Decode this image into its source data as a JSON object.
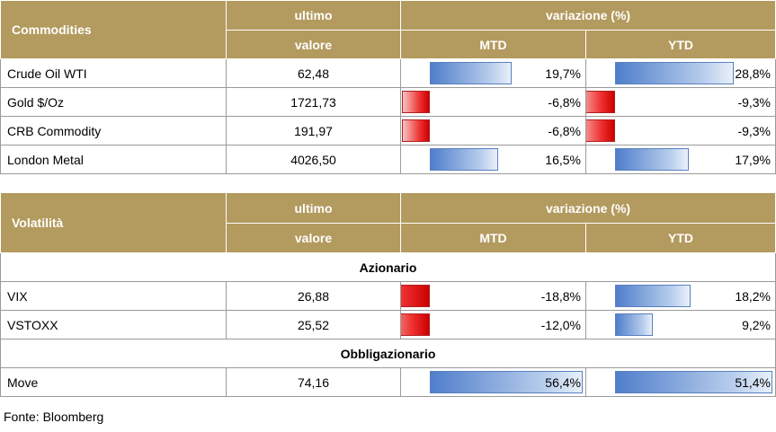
{
  "tables": [
    {
      "name": "Commodities",
      "header": {
        "col1_line1": "ultimo",
        "col1_line2": "valore",
        "variation": "variazione (%)",
        "mtd": "MTD",
        "ytd": "YTD"
      },
      "bar_center_mtd": 0.13,
      "bar_center_ytd": 0.13,
      "rows": [
        {
          "label": "Crude Oil WTI",
          "value": "62,48",
          "mtd": "19,7%",
          "mtd_num": 19.7,
          "ytd": "28,8%",
          "ytd_num": 28.8
        },
        {
          "label": "Gold $/Oz",
          "value": "1721,73",
          "mtd": "-6,8%",
          "mtd_num": -6.8,
          "ytd": "-9,3%",
          "ytd_num": -9.3
        },
        {
          "label": "CRB Commodity",
          "value": "191,97",
          "mtd": "-6,8%",
          "mtd_num": -6.8,
          "ytd": "-9,3%",
          "ytd_num": -9.3
        },
        {
          "label": "London Metal",
          "value": "4026,50",
          "mtd": "16,5%",
          "mtd_num": 16.5,
          "ytd": "17,9%",
          "ytd_num": 17.9
        }
      ]
    },
    {
      "name": "Volatilità",
      "header": {
        "col1_line1": "ultimo",
        "col1_line2": "valore",
        "variation": "variazione (%)",
        "mtd": "MTD",
        "ytd": "YTD"
      },
      "sections": [
        {
          "title": "Azionario",
          "rows": [
            {
              "label": "VIX",
              "value": "26,88",
              "mtd": "-18,8%",
              "mtd_num": -18.8,
              "ytd": "18,2%",
              "ytd_num": 18.2
            },
            {
              "label": "VSTOXX",
              "value": "25,52",
              "mtd": "-12,0%",
              "mtd_num": -12.0,
              "ytd": "9,2%",
              "ytd_num": 9.2
            }
          ]
        },
        {
          "title": "Obbligazionario",
          "rows": [
            {
              "label": "Move",
              "value": "74,16",
              "mtd": "56,4%",
              "mtd_num": 56.4,
              "ytd": "51,4%",
              "ytd_num": 51.4
            }
          ]
        }
      ]
    }
  ],
  "source": "Fonte: Bloomberg"
}
